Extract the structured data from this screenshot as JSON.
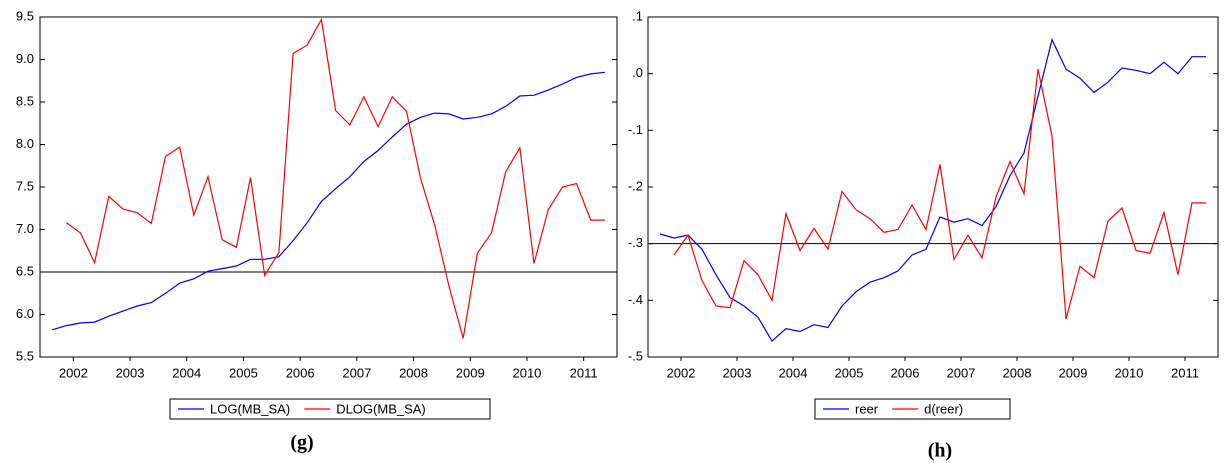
{
  "chart_data": [
    {
      "type": "line",
      "caption": "(g)",
      "x": [
        2002.125,
        2002.375,
        2002.625,
        2002.875,
        2003.125,
        2003.375,
        2003.625,
        2003.875,
        2004.125,
        2004.375,
        2004.625,
        2004.875,
        2005.125,
        2005.375,
        2005.625,
        2005.875,
        2006.125,
        2006.375,
        2006.625,
        2006.875,
        2007.125,
        2007.375,
        2007.625,
        2007.875,
        2008.125,
        2008.375,
        2008.625,
        2008.875,
        2009.125,
        2009.375,
        2009.625,
        2009.875,
        2010.125,
        2010.375,
        2010.625,
        2010.875,
        2011.125,
        2011.375,
        2011.625,
        2011.875
      ],
      "xlim": [
        2002,
        2012
      ],
      "xticks": [
        {
          "value": 2002.5,
          "label": "2002"
        },
        {
          "value": 2003.5,
          "label": "2003"
        },
        {
          "value": 2004.5,
          "label": "2004"
        },
        {
          "value": 2005.5,
          "label": "2005"
        },
        {
          "value": 2006.5,
          "label": "2006"
        },
        {
          "value": 2007.5,
          "label": "2007"
        },
        {
          "value": 2008.5,
          "label": "2008"
        },
        {
          "value": 2009.5,
          "label": "2009"
        },
        {
          "value": 2010.5,
          "label": "2010"
        },
        {
          "value": 2011.5,
          "label": "2011"
        }
      ],
      "ylim": [
        5.5,
        9.5
      ],
      "yticks": [
        5.5,
        {
          "value": 6,
          "label": "6.0"
        },
        6.5,
        {
          "value": 7,
          "label": "7.0"
        },
        7.5,
        {
          "value": 8,
          "label": "8.0"
        },
        8.5,
        {
          "value": 9,
          "label": "9.0"
        },
        9.5
      ],
      "reference_line": 6.5,
      "series": [
        {
          "name": "LOG(MB_SA)",
          "color": "#0000ff",
          "values": [
            5.82,
            5.87,
            5.9,
            5.91,
            5.98,
            6.04,
            6.1,
            6.14,
            6.25,
            6.37,
            6.42,
            6.51,
            6.54,
            6.57,
            6.65,
            6.65,
            6.68,
            6.87,
            7.08,
            7.33,
            7.48,
            7.62,
            7.8,
            7.93,
            8.09,
            8.24,
            8.32,
            8.37,
            8.36,
            8.3,
            8.32,
            8.36,
            8.45,
            8.57,
            8.58,
            8.64,
            8.71,
            8.79,
            8.83,
            8.85
          ]
        },
        {
          "name": "DLOG(MB_SA)",
          "color": "#ff0000",
          "values": [
            null,
            7.08,
            6.96,
            6.61,
            7.39,
            7.24,
            7.2,
            7.07,
            7.86,
            7.97,
            7.17,
            7.62,
            6.88,
            6.79,
            7.61,
            6.46,
            6.73,
            9.07,
            9.17,
            9.47,
            8.4,
            8.23,
            8.56,
            8.21,
            8.56,
            8.39,
            7.6,
            7.05,
            6.33,
            5.72,
            6.72,
            6.96,
            7.68,
            7.96,
            6.6,
            7.23,
            7.5,
            7.54,
            7.11,
            7.11
          ]
        }
      ]
    },
    {
      "type": "line",
      "caption": "(h)",
      "x": [
        2002.125,
        2002.375,
        2002.625,
        2002.875,
        2003.125,
        2003.375,
        2003.625,
        2003.875,
        2004.125,
        2004.375,
        2004.625,
        2004.875,
        2005.125,
        2005.375,
        2005.625,
        2005.875,
        2006.125,
        2006.375,
        2006.625,
        2006.875,
        2007.125,
        2007.375,
        2007.625,
        2007.875,
        2008.125,
        2008.375,
        2008.625,
        2008.875,
        2009.125,
        2009.375,
        2009.625,
        2009.875,
        2010.125,
        2010.375,
        2010.625,
        2010.875,
        2011.125,
        2011.375,
        2011.625,
        2011.875
      ],
      "xlim": [
        2002,
        2012
      ],
      "xticks": [
        {
          "value": 2002.5,
          "label": "2002"
        },
        {
          "value": 2003.5,
          "label": "2003"
        },
        {
          "value": 2004.5,
          "label": "2004"
        },
        {
          "value": 2005.5,
          "label": "2005"
        },
        {
          "value": 2006.5,
          "label": "2006"
        },
        {
          "value": 2007.5,
          "label": "2007"
        },
        {
          "value": 2008.5,
          "label": "2008"
        },
        {
          "value": 2009.5,
          "label": "2009"
        },
        {
          "value": 2010.5,
          "label": "2010"
        },
        {
          "value": 2011.5,
          "label": "2011"
        }
      ],
      "ylim": [
        -0.5,
        0.1
      ],
      "yticks": [
        {
          "value": -0.5,
          "label": "-.5"
        },
        {
          "value": -0.4,
          "label": "-.4"
        },
        {
          "value": -0.3,
          "label": "-.3"
        },
        {
          "value": -0.2,
          "label": "-.2"
        },
        {
          "value": -0.1,
          "label": "-.1"
        },
        {
          "value": 0,
          "label": ".0"
        },
        {
          "value": 0.1,
          "label": ".1"
        }
      ],
      "reference_line": -0.3,
      "series": [
        {
          "name": "reer",
          "color": "#0000ff",
          "values": [
            -0.283,
            -0.29,
            -0.285,
            -0.31,
            -0.355,
            -0.395,
            -0.41,
            -0.43,
            -0.472,
            -0.45,
            -0.455,
            -0.443,
            -0.448,
            -0.41,
            -0.385,
            -0.368,
            -0.36,
            -0.348,
            -0.32,
            -0.31,
            -0.253,
            -0.262,
            -0.256,
            -0.268,
            -0.235,
            -0.18,
            -0.14,
            -0.04,
            0.06,
            0.008,
            -0.008,
            -0.033,
            -0.015,
            0.01,
            0.006,
            0.0,
            0.02,
            0.0,
            0.03,
            0.03
          ]
        },
        {
          "name": "d(reer)",
          "color": "#ff0000",
          "values": [
            null,
            -0.32,
            -0.285,
            -0.365,
            -0.41,
            -0.413,
            -0.33,
            -0.355,
            -0.4,
            -0.247,
            -0.312,
            -0.273,
            -0.31,
            -0.208,
            -0.24,
            -0.256,
            -0.28,
            -0.275,
            -0.232,
            -0.275,
            -0.16,
            -0.328,
            -0.285,
            -0.325,
            -0.218,
            -0.155,
            -0.212,
            0.008,
            -0.11,
            -0.433,
            -0.34,
            -0.36,
            -0.26,
            -0.237,
            -0.312,
            -0.317,
            -0.245,
            -0.355,
            -0.228,
            -0.228
          ]
        }
      ]
    }
  ]
}
